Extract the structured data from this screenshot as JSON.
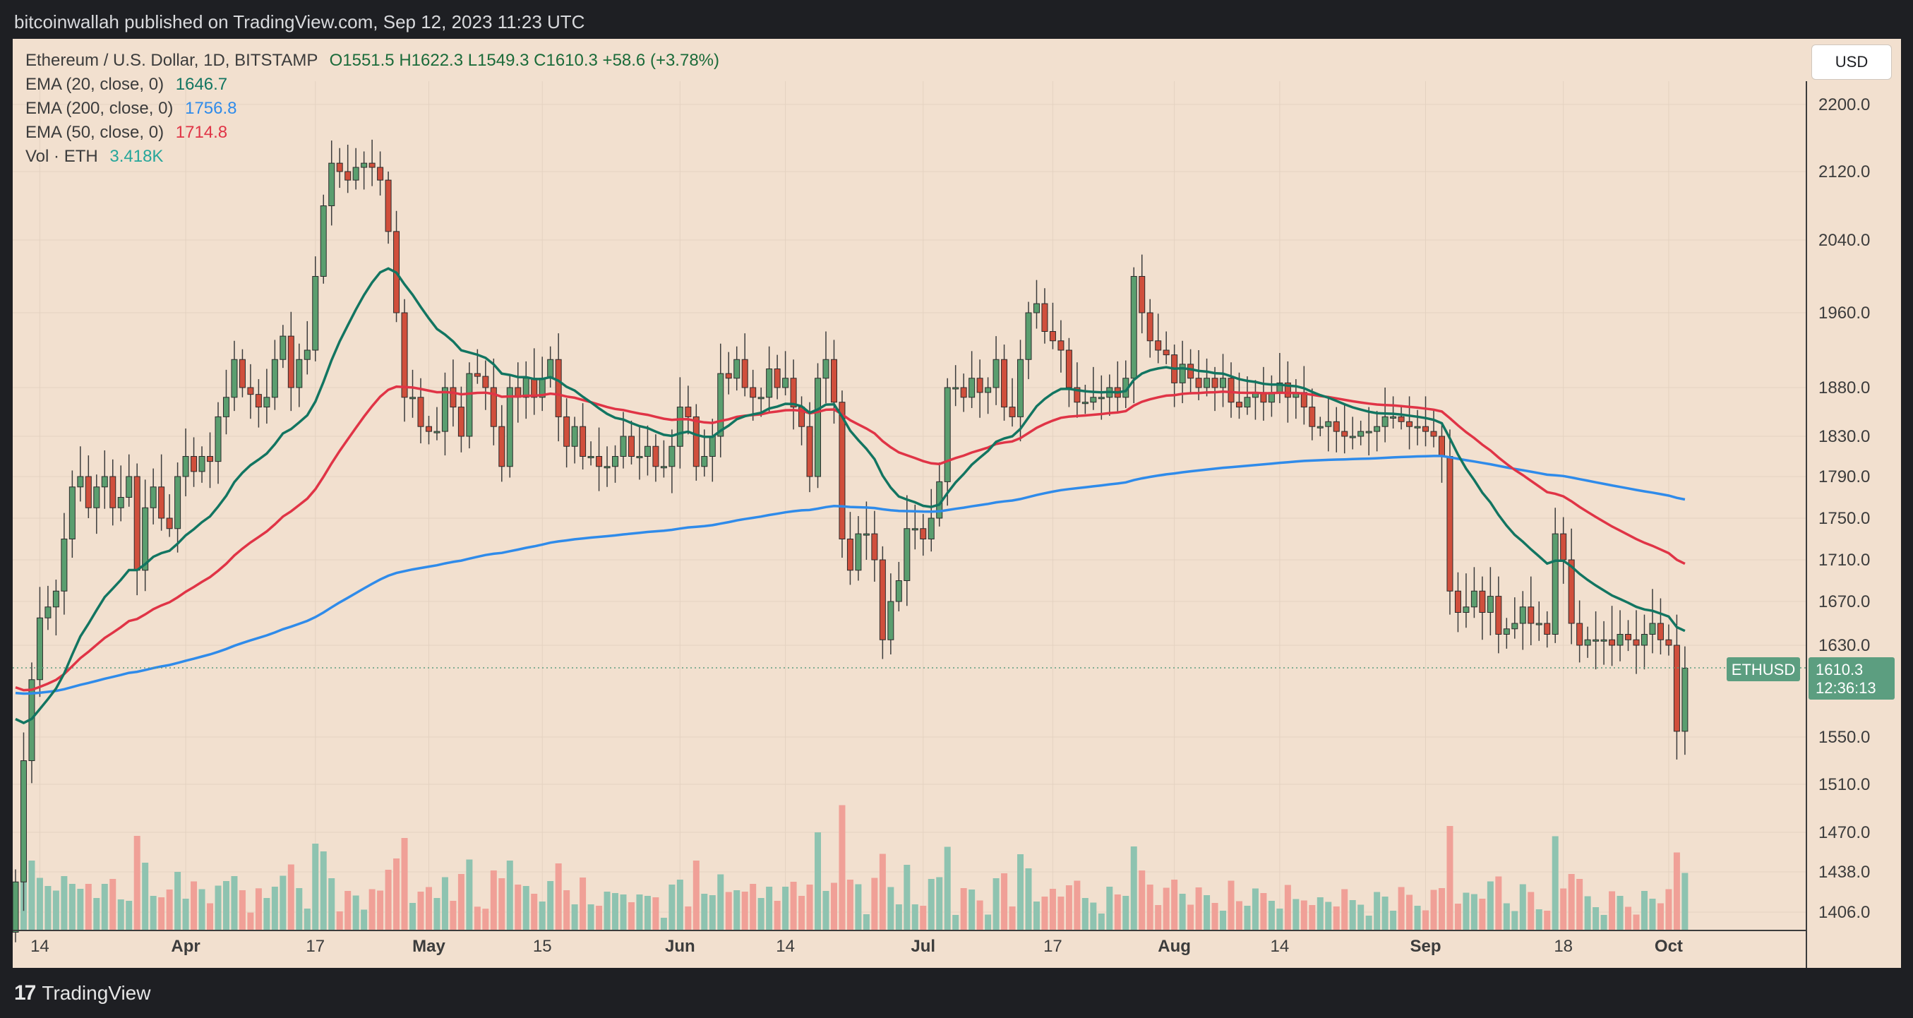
{
  "header": {
    "published_line": "bitcoinwallah published on TradingView.com, Sep 12, 2023 11:23 UTC"
  },
  "legend": {
    "symbol": "Ethereum / U.S. Dollar, 1D, BITSTAMP",
    "ohlc": "O1551.5  H1622.3  L1549.3  C1610.3  +58.6 (+3.78%)",
    "ema20_label": "EMA (20, close, 0)",
    "ema20_value": "1646.7",
    "ema200_label": "EMA (200, close, 0)",
    "ema200_value": "1756.8",
    "ema50_label": "EMA (50, close, 0)",
    "ema50_value": "1714.8",
    "vol_label": "Vol · ETH",
    "vol_value": "3.418K"
  },
  "currency_button": "USD",
  "price_tag": {
    "symbol": "ETHUSD",
    "price": "1610.3",
    "countdown": "12:36:13"
  },
  "footer": {
    "brand": "TradingView",
    "logo_glyph": "17"
  },
  "colors": {
    "up": "#5a9e6f",
    "down": "#d04f3c",
    "up_vol": "#8ec3b0",
    "down_vol": "#f0a097",
    "ema20": "#127561",
    "ema50": "#e03446",
    "ema200": "#2f8bea",
    "background": "#f2e0cf",
    "axis_text": "#3c3c3c",
    "price_tag": "#5c9e80"
  },
  "chart_data": {
    "type": "candlestick",
    "title": "Ethereum / U.S. Dollar, 1D, BITSTAMP",
    "x_start": "2023-03-11",
    "x_ticks": [
      {
        "label": "14",
        "date": "2023-03-14"
      },
      {
        "label": "Apr",
        "date": "2023-04-01"
      },
      {
        "label": "17",
        "date": "2023-04-17"
      },
      {
        "label": "May",
        "date": "2023-05-01"
      },
      {
        "label": "15",
        "date": "2023-05-15"
      },
      {
        "label": "Jun",
        "date": "2023-06-01"
      },
      {
        "label": "14",
        "date": "2023-06-14"
      },
      {
        "label": "Jul",
        "date": "2023-07-01"
      },
      {
        "label": "17",
        "date": "2023-07-17"
      },
      {
        "label": "Aug",
        "date": "2023-08-01"
      },
      {
        "label": "14",
        "date": "2023-08-14"
      },
      {
        "label": "Sep",
        "date": "2023-09-01"
      },
      {
        "label": "18",
        "date": "2023-09-18"
      },
      {
        "label": "Oct",
        "date": "2023-10-01"
      }
    ],
    "y_ticks": [
      {
        "label": "2200.0",
        "value": 2200
      },
      {
        "label": "2120.0",
        "value": 2120
      },
      {
        "label": "2040.0",
        "value": 2040
      },
      {
        "label": "1960.0",
        "value": 1960
      },
      {
        "label": "1880.0",
        "value": 1880
      },
      {
        "label": "1830.0",
        "value": 1830
      },
      {
        "label": "1790.0",
        "value": 1790
      },
      {
        "label": "1750.0",
        "value": 1750
      },
      {
        "label": "1710.0",
        "value": 1710
      },
      {
        "label": "1670.0",
        "value": 1670
      },
      {
        "label": "1630.0",
        "value": 1630
      },
      {
        "label": "1550.0",
        "value": 1550
      },
      {
        "label": "1510.0",
        "value": 1510
      },
      {
        "label": "1470.0",
        "value": 1470
      },
      {
        "label": "1438.0",
        "value": 1438
      },
      {
        "label": "1406.0",
        "value": 1406
      }
    ],
    "close": [
      1430,
      1530,
      1600,
      1655,
      1665,
      1680,
      1730,
      1780,
      1790,
      1760,
      1780,
      1790,
      1760,
      1770,
      1790,
      1700,
      1760,
      1780,
      1750,
      1740,
      1790,
      1810,
      1795,
      1810,
      1805,
      1850,
      1870,
      1910,
      1880,
      1873,
      1860,
      1870,
      1910,
      1935,
      1880,
      1910,
      1920,
      2000,
      2080,
      2130,
      2120,
      2110,
      2125,
      2130,
      2125,
      2110,
      2050,
      1960,
      1870,
      1870,
      1840,
      1835,
      1835,
      1880,
      1860,
      1830,
      1895,
      1892,
      1880,
      1840,
      1800,
      1880,
      1870,
      1890,
      1870,
      1890,
      1910,
      1850,
      1820,
      1840,
      1810,
      1810,
      1800,
      1800,
      1810,
      1830,
      1810,
      1810,
      1820,
      1800,
      1800,
      1820,
      1860,
      1850,
      1800,
      1810,
      1830,
      1895,
      1890,
      1910,
      1880,
      1870,
      1870,
      1900,
      1880,
      1890,
      1860,
      1840,
      1790,
      1890,
      1910,
      1865,
      1730,
      1700,
      1735,
      1735,
      1710,
      1635,
      1670,
      1690,
      1740,
      1740,
      1730,
      1750,
      1785,
      1880,
      1880,
      1870,
      1890,
      1875,
      1880,
      1910,
      1860,
      1850,
      1910,
      1960,
      1970,
      1940,
      1930,
      1920,
      1880,
      1865,
      1865,
      1870,
      1870,
      1880,
      1870,
      1890,
      2000,
      1960,
      1930,
      1920,
      1915,
      1885,
      1905,
      1890,
      1880,
      1890,
      1880,
      1890,
      1865,
      1860,
      1870,
      1875,
      1865,
      1875,
      1885,
      1870,
      1875,
      1860,
      1840,
      1840,
      1845,
      1835,
      1830,
      1830,
      1835,
      1835,
      1840,
      1850,
      1850,
      1845,
      1840,
      1840,
      1835,
      1830,
      1810,
      1680,
      1660,
      1665,
      1680,
      1660,
      1675,
      1640,
      1645,
      1650,
      1665,
      1650,
      1650,
      1640,
      1735,
      1710,
      1650,
      1630,
      1635,
      1635,
      1635,
      1630,
      1640,
      1635,
      1630,
      1640,
      1650,
      1635,
      1630,
      1555,
      1610
    ]
  }
}
